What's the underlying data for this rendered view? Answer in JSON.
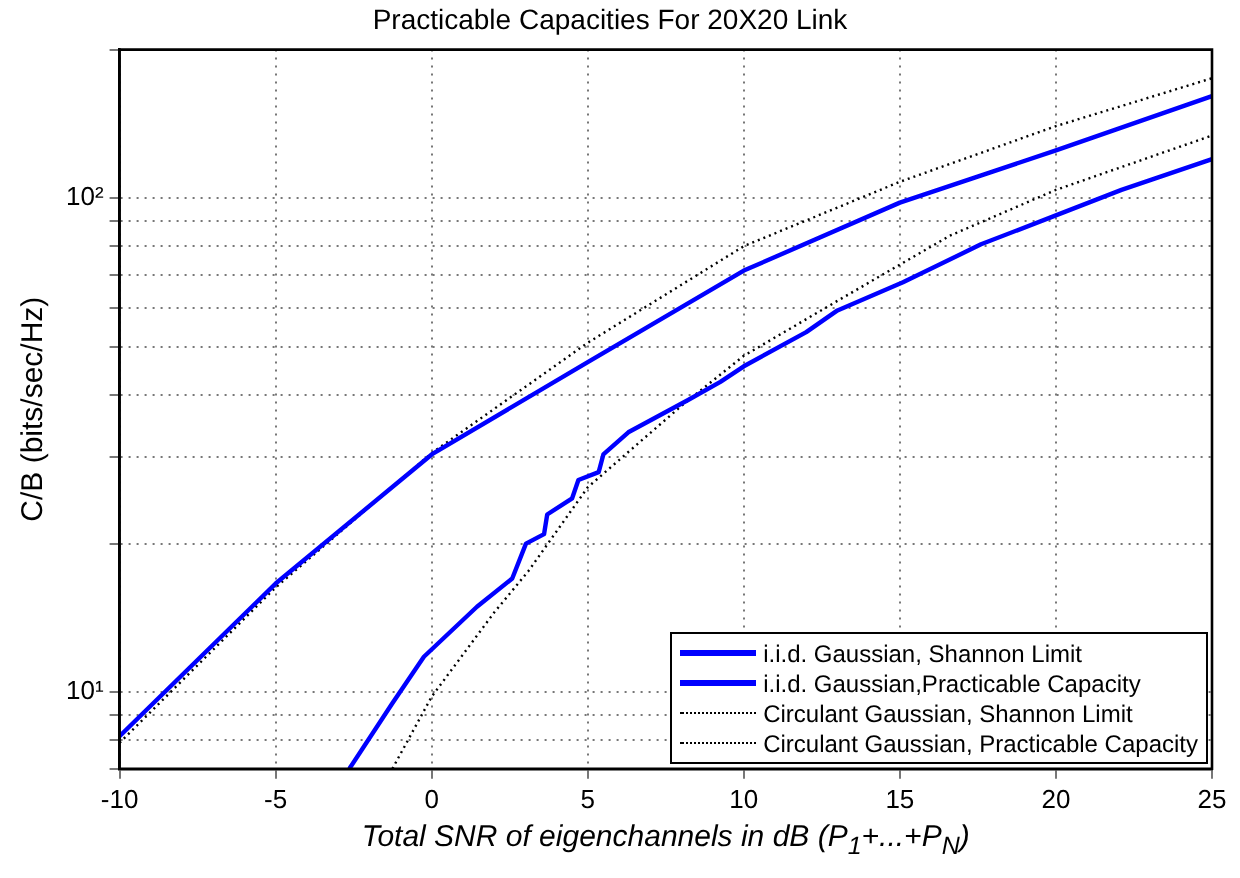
{
  "chart_data": {
    "type": "line",
    "title": "Practicable Capacities For 20X20 Link",
    "xlabel": "Total SNR of eigenchannels in dB (P$_{1}$+...+P$_{N}$)",
    "ylabel": "C/B (bits/sec/Hz)",
    "xlim": [
      -10,
      25
    ],
    "xticks": [
      -10,
      -5,
      0,
      5,
      10,
      15,
      20,
      25
    ],
    "ylim": [
      7,
      200
    ],
    "log": true,
    "yticks": [
      {
        "value": 7,
        "label": null
      },
      {
        "value": 8,
        "label": null
      },
      {
        "value": 9,
        "label": null
      },
      {
        "value": 10,
        "label": "10¹"
      },
      {
        "value": 20,
        "label": null
      },
      {
        "value": 30,
        "label": null
      },
      {
        "value": 40,
        "label": null
      },
      {
        "value": 50,
        "label": null
      },
      {
        "value": 60,
        "label": null
      },
      {
        "value": 70,
        "label": null
      },
      {
        "value": 80,
        "label": null
      },
      {
        "value": 90,
        "label": null
      },
      {
        "value": 100,
        "label": "10²"
      },
      {
        "value": 200,
        "label": null
      }
    ],
    "grid": true,
    "legend": "bottom right",
    "marker": "none",
    "series": [
      {
        "name": "i.i.d. Gaussian, Shannon Limit",
        "color": "#0000ff",
        "line_style": "solid",
        "x": [
          -10,
          -5,
          0,
          5,
          10,
          15,
          20,
          25
        ],
        "values": [
          8.15,
          16.6,
          30.3,
          46.6,
          71.4,
          98,
          125,
          161
        ]
      },
      {
        "name": "i.i.d. Gaussian,Practicable Capacity",
        "color": "#0000ff",
        "line_style": "solid",
        "x": [
          -2.64,
          -1.26,
          -0.25,
          1.45,
          2.58,
          3.02,
          3.6,
          3.7,
          4.5,
          4.7,
          5.35,
          5.5,
          6.3,
          8.2,
          9.25,
          10,
          12,
          13,
          15.1,
          17.6,
          20.1,
          22.1,
          25
        ],
        "values": [
          7,
          9.5,
          11.8,
          14.9,
          17,
          20,
          20.9,
          22.9,
          24.7,
          26.9,
          27.9,
          30.3,
          33.6,
          39,
          42.5,
          45.7,
          53.6,
          59.3,
          67.6,
          80.7,
          92.9,
          104,
          120
        ]
      },
      {
        "name": "Circulant Gaussian, Shannon Limit",
        "color": "#000000",
        "line_style": "dotted",
        "x": [
          -10,
          -5,
          0,
          5,
          10,
          15,
          20,
          25
        ],
        "values": [
          7.9,
          16.3,
          30.5,
          51,
          80,
          108,
          140,
          175
        ]
      },
      {
        "name": "Circulant Gaussian, Practicable Capacity",
        "color": "#000000",
        "line_style": "dotted",
        "x": [
          -1.26,
          0,
          2,
          3.1,
          5,
          8,
          10,
          13,
          16.6,
          20,
          25
        ],
        "values": [
          7,
          9.8,
          14.5,
          17.6,
          26,
          38,
          48,
          62,
          84,
          104,
          134
        ]
      }
    ]
  }
}
